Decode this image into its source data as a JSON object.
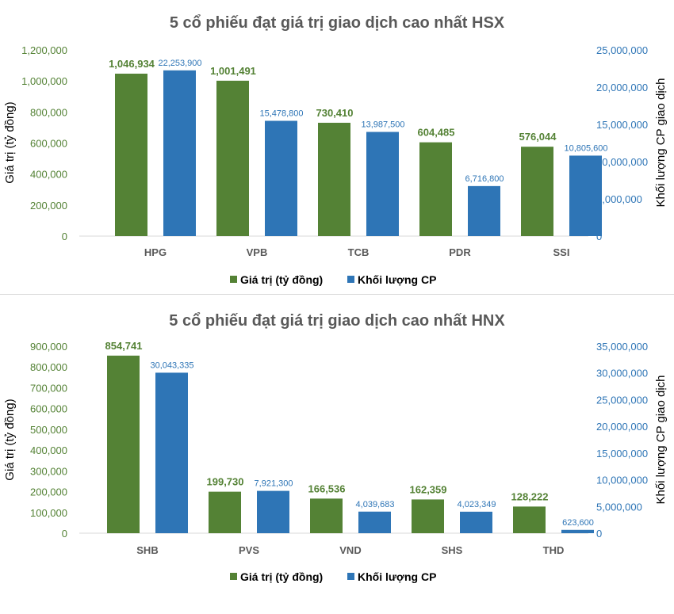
{
  "colors": {
    "green": "#548235",
    "blue": "#2E75B6",
    "title": "#595959"
  },
  "chart_data": [
    {
      "type": "bar",
      "title": "5 cổ phiếu đạt giá trị giao dịch cao nhất HSX",
      "categories": [
        "HPG",
        "VPB",
        "TCB",
        "PDR",
        "SSI"
      ],
      "ylabel": "Giá trị (tỷ đồng)",
      "y2label": "Khối lượng CP giao dịch",
      "ylim": [
        0,
        1200000
      ],
      "y2lim": [
        0,
        25000000
      ],
      "yticks": [
        "0",
        "200,000",
        "400,000",
        "600,000",
        "800,000",
        "1,000,000",
        "1,200,000"
      ],
      "y2ticks": [
        "0",
        "5,000,000",
        "10,000,000",
        "15,000,000",
        "20,000,000",
        "25,000,000"
      ],
      "legend": "bottom",
      "series": [
        {
          "name": "Giá trị (tỷ đồng)",
          "axis": "left",
          "color": "#548235",
          "values": [
            1046934,
            1001491,
            730410,
            604485,
            576044
          ],
          "labels": [
            "1,046,934",
            "1,001,491",
            "730,410",
            "604,485",
            "576,044"
          ]
        },
        {
          "name": "Khối lượng CP",
          "axis": "right",
          "color": "#2E75B6",
          "values": [
            22253900,
            15478800,
            13987500,
            6716800,
            10805600
          ],
          "labels": [
            "22,253,900",
            "15,478,800",
            "13,987,500",
            "6,716,800",
            "10,805,600"
          ]
        }
      ]
    },
    {
      "type": "bar",
      "title": "5 cổ phiếu đạt giá trị giao dịch cao nhất HNX",
      "categories": [
        "SHB",
        "PVS",
        "VND",
        "SHS",
        "THD"
      ],
      "ylabel": "Giá trị (tỷ đồng)",
      "y2label": "Khối lượng CP giao dịch",
      "ylim": [
        0,
        900000
      ],
      "y2lim": [
        0,
        35000000
      ],
      "yticks": [
        "0",
        "100,000",
        "200,000",
        "300,000",
        "400,000",
        "500,000",
        "600,000",
        "700,000",
        "800,000",
        "900,000"
      ],
      "y2ticks": [
        "0",
        "5,000,000",
        "10,000,000",
        "15,000,000",
        "20,000,000",
        "25,000,000",
        "30,000,000",
        "35,000,000"
      ],
      "legend": "bottom",
      "series": [
        {
          "name": "Giá trị (tỷ đồng)",
          "axis": "left",
          "color": "#548235",
          "values": [
            854741,
            199730,
            166536,
            162359,
            128222
          ],
          "labels": [
            "854,741",
            "199,730",
            "166,536",
            "162,359",
            "128,222"
          ]
        },
        {
          "name": "Khối lượng CP",
          "axis": "right",
          "color": "#2E75B6",
          "values": [
            30043335,
            7921300,
            4039683,
            4023349,
            623600
          ],
          "labels": [
            "30,043,335",
            "7,921,300",
            "4,039,683",
            "4,023,349",
            "623,600"
          ]
        }
      ]
    }
  ]
}
